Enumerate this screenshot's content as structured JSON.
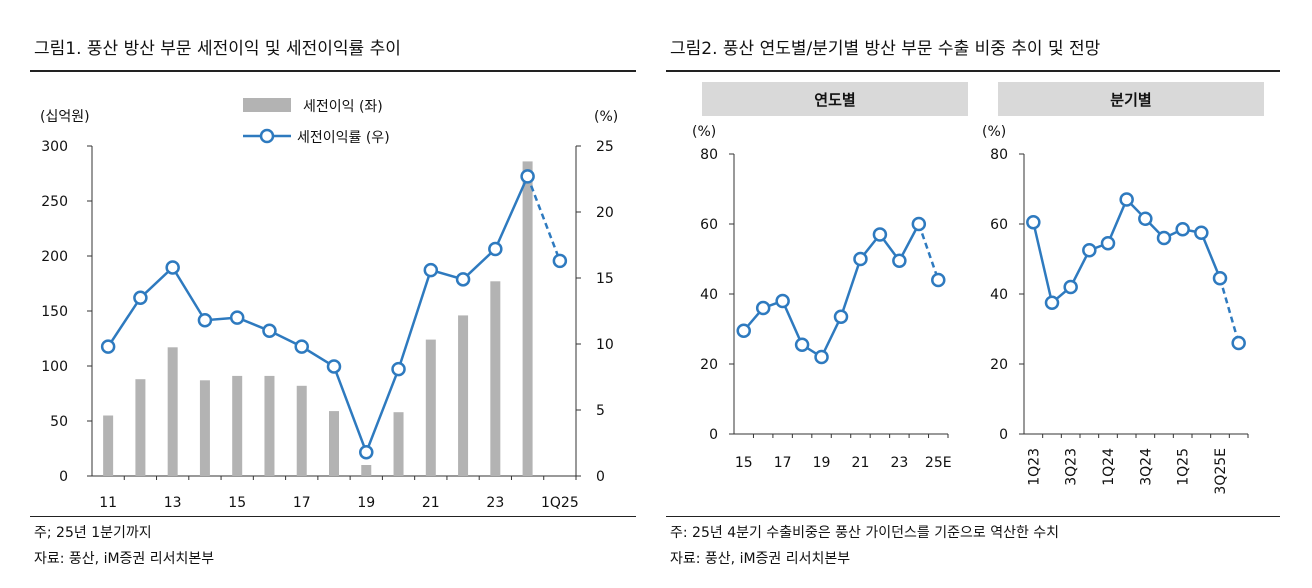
{
  "figure1": {
    "title": "그림1.   풍산 방산 부문 세전이익 및 세전이익률 추이",
    "footnote": "주; 25년 1분기까지",
    "source": "자료: 풍산, iM증권 리서치본부"
  },
  "figure2": {
    "title": "그림2.   풍산 연도별/분기별 방산 부문 수출 비중 추이 및 전망",
    "footnote": "주: 25년 4분기 수출비중은 풍산 가이던스를 기준으로 역산한 수치",
    "source": "자료: 풍산, iM증권 리서치본부"
  },
  "chart_data": [
    {
      "type": "bar",
      "categories": [
        "11",
        "12",
        "13",
        "14",
        "15",
        "16",
        "17",
        "18",
        "19",
        "20",
        "21",
        "22",
        "23",
        "24",
        "1Q25"
      ],
      "x_tick_labels": [
        "11",
        "13",
        "15",
        "17",
        "19",
        "21",
        "23",
        "1Q25"
      ],
      "series": [
        {
          "name": "세전이익 (좌)",
          "type": "bar",
          "axis": "left",
          "values": [
            55,
            88,
            117,
            87,
            91,
            91,
            82,
            59,
            10,
            58,
            124,
            146,
            177,
            286,
            null
          ]
        },
        {
          "name": "세전이익률 (우)",
          "type": "line",
          "axis": "right",
          "values": [
            9.8,
            13.5,
            15.8,
            11.8,
            12.0,
            11.0,
            9.8,
            8.3,
            1.8,
            8.1,
            15.6,
            14.9,
            17.2,
            22.7,
            16.3
          ],
          "dashed_last_segment": true
        }
      ],
      "ylabel_left": "(십억원)",
      "ylabel_right": "(%)",
      "ylim_left": [
        0,
        300
      ],
      "yticks_left": [
        0,
        50,
        100,
        150,
        200,
        250,
        300
      ],
      "ylim_right": [
        0,
        25
      ],
      "yticks_right": [
        0,
        5,
        10,
        15,
        20,
        25
      ],
      "legend_placement": "top-center",
      "colors": {
        "bar": "#b3b3b3",
        "line": "#2e7abf"
      }
    },
    {
      "type": "line",
      "header": "연도별",
      "categories": [
        "15",
        "16",
        "17",
        "18",
        "19",
        "20",
        "21",
        "22",
        "23",
        "24",
        "25E"
      ],
      "x_tick_labels": [
        "15",
        "17",
        "19",
        "21",
        "23",
        "25E"
      ],
      "values": [
        29.5,
        36,
        38,
        25.5,
        22,
        33.5,
        50,
        57,
        49.5,
        60,
        44
      ],
      "ylabel": "(%)",
      "ylim": [
        0,
        80
      ],
      "yticks": [
        0,
        20,
        40,
        60,
        80
      ],
      "dashed_last_segment": true,
      "colors": {
        "line": "#2e7abf"
      }
    },
    {
      "type": "line",
      "header": "분기별",
      "categories": [
        "1Q23",
        "2Q23",
        "3Q23",
        "4Q23",
        "1Q24",
        "2Q24",
        "3Q24",
        "4Q24",
        "1Q25",
        "2Q25",
        "3Q25E",
        "4Q25E"
      ],
      "x_tick_labels": [
        "1Q23",
        "3Q23",
        "1Q24",
        "3Q24",
        "1Q25",
        "3Q25E"
      ],
      "values": [
        60.5,
        37.5,
        42,
        52.5,
        54.5,
        67,
        61.5,
        56,
        58.5,
        57.5,
        44.5,
        26
      ],
      "ylabel": "(%)",
      "ylim": [
        0,
        80
      ],
      "yticks": [
        0,
        20,
        40,
        60,
        80
      ],
      "dashed_last_segment": true,
      "colors": {
        "line": "#2e7abf"
      }
    }
  ]
}
